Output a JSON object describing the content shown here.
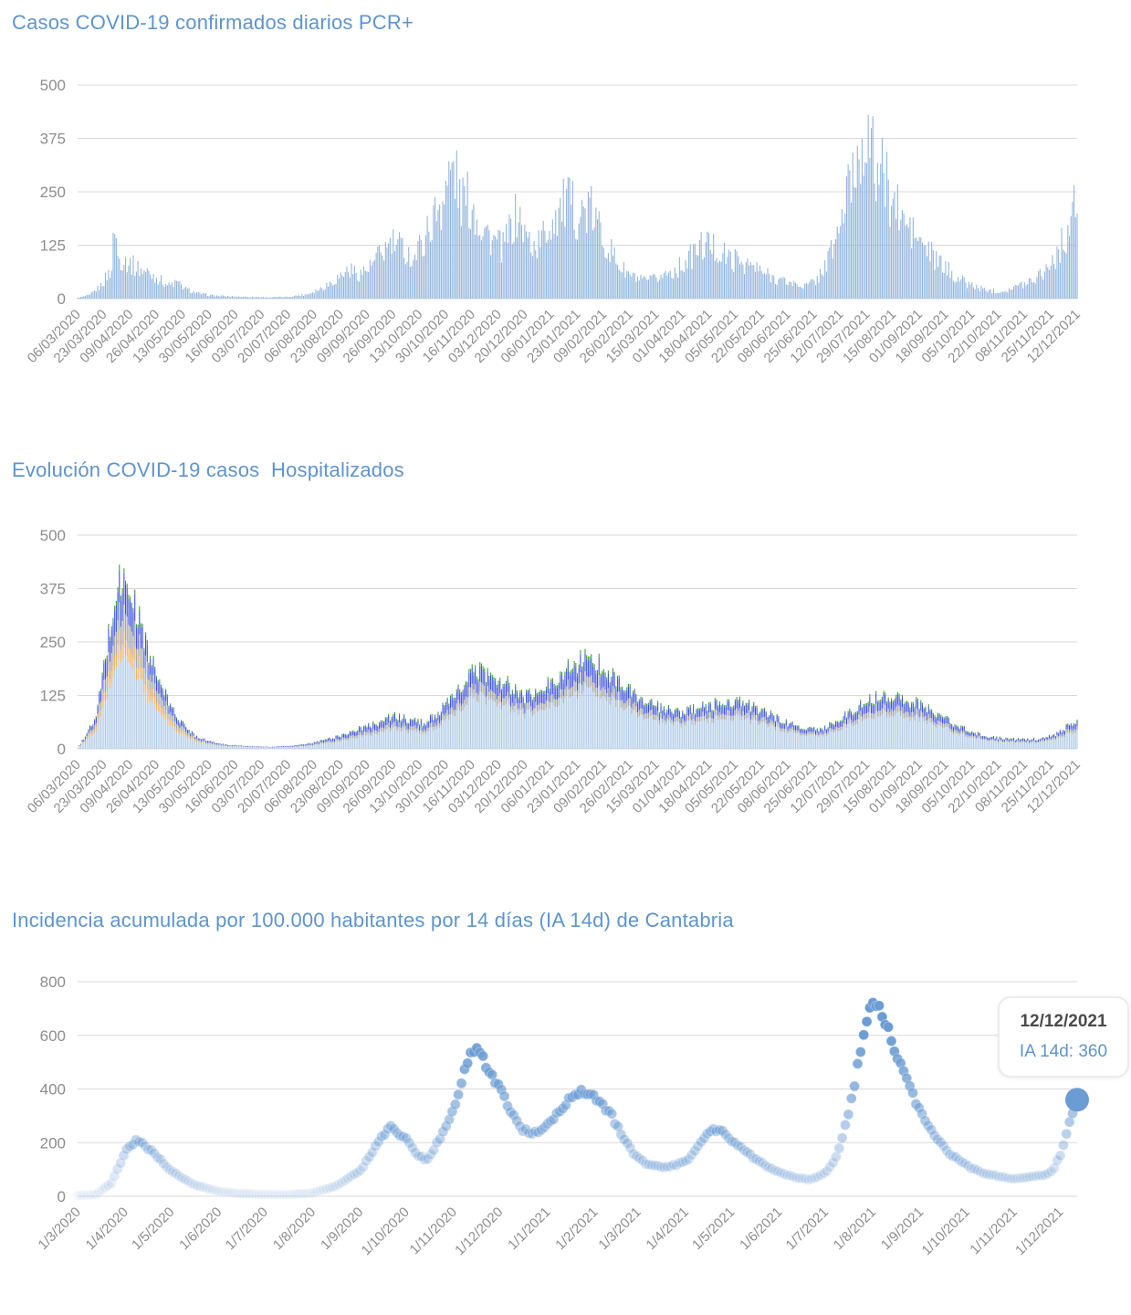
{
  "page": {
    "background": "#ffffff",
    "grid_color": "#d9d9d9",
    "axis_label_color": "#8d8d8d",
    "title_color": "#5e94ce"
  },
  "chart_data": [
    {
      "type": "bar",
      "title": "Casos COVID-19 confirmados diarios PCR+",
      "ylabel": "",
      "xlabel": "",
      "ylim": [
        0,
        500
      ],
      "yticks": [
        0,
        125,
        250,
        375,
        500
      ],
      "grid": true,
      "bar_color": "#93b5dc",
      "x_tick_interval_days": 17,
      "total_days": 646,
      "x_tick_labels": [
        "06/03/2020",
        "23/03/2020",
        "09/04/2020",
        "26/04/2020",
        "13/05/2020",
        "30/05/2020",
        "16/06/2020",
        "03/07/2020",
        "20/07/2020",
        "06/08/2020",
        "23/08/2020",
        "09/09/2020",
        "26/09/2020",
        "13/10/2020",
        "30/10/2020",
        "16/11/2020",
        "03/12/2020",
        "20/12/2020",
        "06/01/2021",
        "23/01/2021",
        "09/02/2021",
        "26/02/2021",
        "15/03/2021",
        "01/04/2021",
        "18/04/2021",
        "05/05/2021",
        "22/05/2021",
        "08/06/2021",
        "25/06/2021",
        "12/07/2021",
        "29/07/2021",
        "15/08/2021",
        "01/09/2021",
        "18/09/2021",
        "05/10/2021",
        "22/10/2021",
        "08/11/2021",
        "25/11/2021",
        "12/12/2021"
      ],
      "anchors_day_value": [
        [
          0,
          2
        ],
        [
          8,
          8
        ],
        [
          15,
          30
        ],
        [
          22,
          70
        ],
        [
          24,
          182
        ],
        [
          26,
          95
        ],
        [
          31,
          90
        ],
        [
          38,
          72
        ],
        [
          45,
          62
        ],
        [
          52,
          48
        ],
        [
          59,
          30
        ],
        [
          64,
          38
        ],
        [
          70,
          22
        ],
        [
          78,
          12
        ],
        [
          88,
          7
        ],
        [
          100,
          5
        ],
        [
          112,
          4
        ],
        [
          124,
          3
        ],
        [
          136,
          4
        ],
        [
          148,
          10
        ],
        [
          158,
          25
        ],
        [
          168,
          48
        ],
        [
          175,
          68
        ],
        [
          182,
          58
        ],
        [
          189,
          72
        ],
        [
          196,
          105
        ],
        [
          203,
          128
        ],
        [
          210,
          118
        ],
        [
          217,
          92
        ],
        [
          224,
          140
        ],
        [
          231,
          195
        ],
        [
          238,
          255
        ],
        [
          243,
          310
        ],
        [
          247,
          235
        ],
        [
          254,
          225
        ],
        [
          261,
          175
        ],
        [
          268,
          138
        ],
        [
          275,
          118
        ],
        [
          281,
          175
        ],
        [
          285,
          198
        ],
        [
          289,
          148
        ],
        [
          296,
          118
        ],
        [
          303,
          158
        ],
        [
          310,
          205
        ],
        [
          317,
          222
        ],
        [
          324,
          195
        ],
        [
          331,
          208
        ],
        [
          338,
          158
        ],
        [
          345,
          108
        ],
        [
          352,
          68
        ],
        [
          359,
          50
        ],
        [
          366,
          40
        ],
        [
          373,
          45
        ],
        [
          380,
          58
        ],
        [
          387,
          68
        ],
        [
          394,
          88
        ],
        [
          401,
          118
        ],
        [
          408,
          128
        ],
        [
          415,
          108
        ],
        [
          422,
          92
        ],
        [
          429,
          88
        ],
        [
          436,
          75
        ],
        [
          443,
          60
        ],
        [
          450,
          50
        ],
        [
          457,
          40
        ],
        [
          464,
          34
        ],
        [
          471,
          30
        ],
        [
          478,
          45
        ],
        [
          485,
          90
        ],
        [
          492,
          160
        ],
        [
          499,
          265
        ],
        [
          506,
          350
        ],
        [
          509,
          420
        ],
        [
          513,
          330
        ],
        [
          520,
          290
        ],
        [
          527,
          228
        ],
        [
          534,
          178
        ],
        [
          541,
          148
        ],
        [
          548,
          118
        ],
        [
          555,
          88
        ],
        [
          562,
          68
        ],
        [
          569,
          48
        ],
        [
          576,
          34
        ],
        [
          583,
          24
        ],
        [
          590,
          19
        ],
        [
          597,
          17
        ],
        [
          604,
          24
        ],
        [
          611,
          34
        ],
        [
          618,
          48
        ],
        [
          625,
          68
        ],
        [
          632,
          98
        ],
        [
          639,
          148
        ],
        [
          644,
          205
        ],
        [
          646,
          218
        ]
      ]
    },
    {
      "type": "stacked-bar",
      "title": "Evolución COVID-19 casos  Hospitalizados",
      "ylabel": "",
      "xlabel": "",
      "ylim": [
        0,
        500
      ],
      "yticks": [
        0,
        125,
        250,
        375,
        500
      ],
      "grid": true,
      "x_tick_interval_days": 17,
      "total_days": 646,
      "x_tick_labels": [
        "06/03/2020",
        "23/03/2020",
        "09/04/2020",
        "26/04/2020",
        "13/05/2020",
        "30/05/2020",
        "16/06/2020",
        "03/07/2020",
        "20/07/2020",
        "06/08/2020",
        "23/08/2020",
        "09/09/2020",
        "26/09/2020",
        "13/10/2020",
        "30/10/2020",
        "16/11/2020",
        "03/12/2020",
        "20/12/2020",
        "06/01/2021",
        "23/01/2021",
        "09/02/2021",
        "26/02/2021",
        "15/03/2021",
        "01/04/2021",
        "18/04/2021",
        "05/05/2021",
        "22/05/2021",
        "08/06/2021",
        "25/06/2021",
        "12/07/2021",
        "29/07/2021",
        "15/08/2021",
        "01/09/2021",
        "18/09/2021",
        "05/10/2021",
        "22/10/2021",
        "08/11/2021",
        "25/11/2021",
        "12/12/2021"
      ],
      "anchor_days": [
        0,
        12,
        20,
        27,
        34,
        41,
        48,
        55,
        62,
        69,
        76,
        85,
        95,
        110,
        125,
        140,
        152,
        165,
        178,
        191,
        204,
        214,
        224,
        234,
        244,
        254,
        261,
        268,
        278,
        288,
        295,
        302,
        312,
        322,
        332,
        342,
        352,
        362,
        372,
        382,
        392,
        402,
        412,
        422,
        432,
        442,
        452,
        462,
        472,
        482,
        492,
        502,
        512,
        522,
        532,
        542,
        552,
        562,
        572,
        582,
        592,
        602,
        612,
        622,
        632,
        640,
        646
      ],
      "series": [
        {
          "name": "serie-azul-claro",
          "color": "#aac6e4",
          "values": [
            1,
            40,
            140,
            225,
            205,
            160,
            110,
            75,
            48,
            30,
            18,
            10,
            6,
            4,
            3,
            4,
            8,
            15,
            25,
            35,
            48,
            42,
            38,
            55,
            80,
            115,
            125,
            110,
            100,
            80,
            85,
            95,
            115,
            135,
            140,
            125,
            100,
            80,
            68,
            60,
            58,
            65,
            70,
            75,
            70,
            60,
            48,
            38,
            30,
            32,
            45,
            62,
            78,
            85,
            80,
            72,
            60,
            45,
            32,
            24,
            18,
            15,
            14,
            16,
            22,
            35,
            45
          ]
        },
        {
          "name": "serie-naranja",
          "color": "#f2af55",
          "values": [
            0,
            8,
            25,
            35,
            33,
            28,
            20,
            14,
            9,
            5,
            3,
            1,
            0,
            0,
            0,
            0,
            0,
            0,
            0,
            0,
            0,
            0,
            0,
            0,
            0,
            0,
            0,
            0,
            0,
            0,
            0,
            0,
            0,
            0,
            0,
            0,
            0,
            0,
            0,
            0,
            0,
            0,
            0,
            0,
            0,
            0,
            0,
            0,
            0,
            0,
            0,
            0,
            0,
            0,
            0,
            0,
            0,
            0,
            0,
            0,
            0,
            0,
            0,
            0,
            0,
            0,
            0
          ]
        },
        {
          "name": "serie-gris",
          "color": "#a5a5a5",
          "values": [
            0,
            10,
            40,
            60,
            55,
            45,
            32,
            22,
            14,
            8,
            5,
            3,
            2,
            1,
            1,
            1,
            2,
            4,
            6,
            8,
            10,
            9,
            8,
            11,
            15,
            20,
            21,
            19,
            17,
            14,
            15,
            16,
            20,
            23,
            24,
            21,
            17,
            14,
            12,
            10,
            10,
            11,
            12,
            13,
            12,
            10,
            8,
            7,
            5,
            6,
            8,
            11,
            13,
            15,
            14,
            12,
            10,
            8,
            6,
            4,
            3,
            3,
            3,
            3,
            4,
            7,
            9
          ]
        },
        {
          "name": "serie-azul",
          "color": "#3d52e0",
          "values": [
            0,
            12,
            50,
            70,
            62,
            50,
            35,
            24,
            15,
            9,
            5,
            3,
            2,
            1,
            1,
            2,
            3,
            6,
            9,
            12,
            16,
            14,
            12,
            17,
            24,
            32,
            34,
            30,
            27,
            22,
            23,
            26,
            32,
            37,
            38,
            34,
            27,
            22,
            18,
            16,
            15,
            17,
            19,
            20,
            19,
            16,
            13,
            10,
            8,
            9,
            12,
            17,
            21,
            23,
            22,
            19,
            16,
            12,
            9,
            6,
            5,
            4,
            4,
            4,
            6,
            10,
            13
          ]
        },
        {
          "name": "serie-verde",
          "color": "#3f9e3c",
          "values": [
            0,
            3,
            10,
            12,
            10,
            8,
            6,
            4,
            3,
            2,
            1,
            1,
            0,
            0,
            0,
            0,
            1,
            1,
            2,
            3,
            4,
            3,
            3,
            4,
            6,
            8,
            8,
            7,
            6,
            5,
            5,
            6,
            8,
            9,
            9,
            8,
            6,
            5,
            4,
            4,
            3,
            4,
            4,
            5,
            4,
            4,
            3,
            2,
            2,
            2,
            3,
            4,
            5,
            5,
            5,
            4,
            4,
            3,
            2,
            1,
            1,
            1,
            1,
            1,
            1,
            2,
            3
          ]
        }
      ]
    },
    {
      "type": "scatter",
      "title": "Incidencia acumulada por 100.000 habitantes por 14 días (IA 14d) de Cantabria",
      "ylabel": "",
      "xlabel": "",
      "ylim": [
        0,
        800
      ],
      "yticks": [
        0,
        200,
        400,
        600,
        800
      ],
      "grid": true,
      "point_color": "#6b9cd3",
      "total_days": 651,
      "x_tick_labels": [
        "1/3/2020",
        "1/4/2020",
        "1/5/2020",
        "1/6/2020",
        "1/7/2020",
        "1/8/2020",
        "1/9/2020",
        "1/10/2020",
        "1/11/2020",
        "1/12/2020",
        "1/1/2021",
        "1/2/2021",
        "1/3/2021",
        "1/4/2021",
        "1/5/2021",
        "1/6/2021",
        "1/7/2021",
        "1/8/2021",
        "1/9/2021",
        "1/10/2021",
        "1/11/2021",
        "1/12/2021"
      ],
      "x_tick_days": [
        0,
        31,
        61,
        92,
        122,
        153,
        184,
        214,
        245,
        275,
        306,
        337,
        365,
        396,
        426,
        457,
        487,
        518,
        549,
        579,
        610,
        640
      ],
      "anchors_day_value": [
        [
          0,
          2
        ],
        [
          12,
          6
        ],
        [
          22,
          50
        ],
        [
          31,
          165
        ],
        [
          38,
          210
        ],
        [
          45,
          185
        ],
        [
          61,
          95
        ],
        [
          75,
          45
        ],
        [
          92,
          18
        ],
        [
          107,
          10
        ],
        [
          122,
          7
        ],
        [
          137,
          7
        ],
        [
          153,
          12
        ],
        [
          168,
          38
        ],
        [
          184,
          95
        ],
        [
          196,
          200
        ],
        [
          203,
          260
        ],
        [
          214,
          215
        ],
        [
          222,
          150
        ],
        [
          228,
          135
        ],
        [
          238,
          240
        ],
        [
          245,
          330
        ],
        [
          252,
          470
        ],
        [
          258,
          548
        ],
        [
          262,
          540
        ],
        [
          268,
          470
        ],
        [
          275,
          400
        ],
        [
          283,
          310
        ],
        [
          290,
          250
        ],
        [
          297,
          232
        ],
        [
          306,
          262
        ],
        [
          315,
          330
        ],
        [
          322,
          370
        ],
        [
          328,
          395
        ],
        [
          334,
          385
        ],
        [
          341,
          350
        ],
        [
          348,
          300
        ],
        [
          355,
          220
        ],
        [
          362,
          160
        ],
        [
          369,
          125
        ],
        [
          376,
          112
        ],
        [
          383,
          108
        ],
        [
          390,
          118
        ],
        [
          396,
          130
        ],
        [
          403,
          175
        ],
        [
          409,
          225
        ],
        [
          414,
          250
        ],
        [
          420,
          240
        ],
        [
          427,
          205
        ],
        [
          434,
          170
        ],
        [
          441,
          140
        ],
        [
          448,
          115
        ],
        [
          455,
          95
        ],
        [
          462,
          80
        ],
        [
          469,
          68
        ],
        [
          476,
          62
        ],
        [
          483,
          75
        ],
        [
          488,
          95
        ],
        [
          493,
          135
        ],
        [
          497,
          200
        ],
        [
          502,
          300
        ],
        [
          506,
          420
        ],
        [
          510,
          540
        ],
        [
          513,
          620
        ],
        [
          516,
          685
        ],
        [
          519,
          712
        ],
        [
          522,
          700
        ],
        [
          526,
          655
        ],
        [
          530,
          590
        ],
        [
          535,
          505
        ],
        [
          540,
          430
        ],
        [
          546,
          350
        ],
        [
          553,
          270
        ],
        [
          560,
          210
        ],
        [
          567,
          165
        ],
        [
          574,
          135
        ],
        [
          581,
          108
        ],
        [
          588,
          90
        ],
        [
          595,
          80
        ],
        [
          602,
          72
        ],
        [
          609,
          66
        ],
        [
          616,
          68
        ],
        [
          623,
          76
        ],
        [
          630,
          78
        ],
        [
          635,
          95
        ],
        [
          640,
          155
        ],
        [
          644,
          235
        ],
        [
          648,
          305
        ],
        [
          651,
          360
        ]
      ],
      "highlight": {
        "date": "12/12/2021",
        "label": "IA 14d: 360",
        "value": 360,
        "day": 651
      }
    }
  ]
}
